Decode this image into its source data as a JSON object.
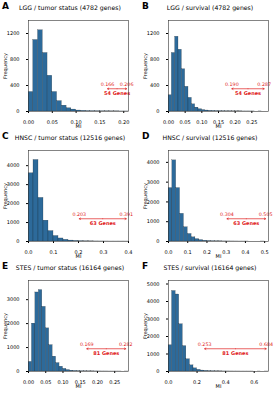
{
  "chart_data": [
    {
      "type": "histogram",
      "panel_label": "A",
      "title": "LGG / tumor status (4782 genes)",
      "x_label": "MI",
      "y_label": "Frequency",
      "color": "#2d6a9a",
      "bins": [
        0,
        0.01,
        0.02,
        0.03,
        0.04,
        0.05,
        0.06,
        0.07,
        0.08,
        0.09,
        0.1,
        0.11,
        0.12,
        0.13,
        0.14,
        0.15,
        0.16,
        0.17,
        0.18,
        0.19,
        0.2,
        0.21
      ],
      "counts": [
        300,
        1100,
        1250,
        900,
        550,
        300,
        160,
        90,
        50,
        30,
        15,
        10,
        6,
        5,
        4,
        3,
        3,
        2,
        2,
        1,
        1
      ],
      "xlim": [
        0,
        0.21
      ],
      "xticks": [
        {
          "value": 0,
          "label": "0.00"
        },
        {
          "value": 0.05,
          "label": "0.05"
        },
        {
          "value": 0.1,
          "label": "0.10"
        },
        {
          "value": 0.15,
          "label": "0.15"
        },
        {
          "value": 0.2,
          "label": "0.20"
        }
      ],
      "ylim": [
        0,
        1400
      ],
      "yticks": [
        0,
        400,
        800,
        1200
      ],
      "annotation": {
        "from": {
          "value": 0.166,
          "label": "0.166"
        },
        "to": {
          "value": 0.206,
          "label": "0.206"
        },
        "text": "54 Genes"
      }
    },
    {
      "type": "histogram",
      "panel_label": "B",
      "title": "LGG / survival (4782 genes)",
      "x_label": "MI",
      "y_label": "Frequency",
      "color": "#2d6a9a",
      "bins": [
        0,
        0.01,
        0.02,
        0.03,
        0.04,
        0.05,
        0.06,
        0.07,
        0.08,
        0.09,
        0.1,
        0.11,
        0.12,
        0.13,
        0.14,
        0.15,
        0.16,
        0.17,
        0.18,
        0.19,
        0.2,
        0.21,
        0.22,
        0.23,
        0.24,
        0.25,
        0.26,
        0.27,
        0.28,
        0.29,
        0.3
      ],
      "counts": [
        250,
        900,
        1150,
        950,
        650,
        380,
        210,
        110,
        60,
        35,
        22,
        15,
        10,
        8,
        6,
        5,
        4,
        3,
        3,
        2,
        2,
        2,
        1,
        1,
        1,
        1,
        0,
        1,
        0,
        0
      ],
      "xlim": [
        0,
        0.3
      ],
      "xticks": [
        {
          "value": 0,
          "label": "0.00"
        },
        {
          "value": 0.05,
          "label": "0.05"
        },
        {
          "value": 0.1,
          "label": "0.10"
        },
        {
          "value": 0.15,
          "label": "0.15"
        },
        {
          "value": 0.2,
          "label": "0.20"
        },
        {
          "value": 0.25,
          "label": "0.25"
        }
      ],
      "ylim": [
        0,
        1400
      ],
      "yticks": [
        0,
        400,
        800,
        1200
      ],
      "annotation": {
        "from": {
          "value": 0.19,
          "label": "0.190"
        },
        "to": {
          "value": 0.287,
          "label": "0.287"
        },
        "text": "54 Genes"
      }
    },
    {
      "type": "histogram",
      "panel_label": "C",
      "title": "HNSC / tumor status (12516 genes)",
      "x_label": "MI",
      "y_label": "Frequency",
      "color": "#2d6a9a",
      "bins": [
        0,
        0.02,
        0.04,
        0.06,
        0.08,
        0.1,
        0.12,
        0.14,
        0.16,
        0.18,
        0.2,
        0.22,
        0.24,
        0.26,
        0.28,
        0.3,
        0.32,
        0.34,
        0.36,
        0.38,
        0.4
      ],
      "counts": [
        3599,
        4300,
        2300,
        1100,
        550,
        290,
        160,
        90,
        50,
        30,
        18,
        10,
        6,
        4,
        3,
        2,
        1,
        1,
        1,
        1
      ],
      "xlim": [
        0,
        0.4
      ],
      "xticks": [
        {
          "value": 0,
          "label": "0.0"
        },
        0.1,
        0.2,
        0.3,
        0.4
      ],
      "ylim": [
        0,
        4800
      ],
      "yticks": [
        0,
        1000,
        2000,
        3000,
        4000
      ],
      "annotation": {
        "from": {
          "value": 0.203,
          "label": "0.203"
        },
        "to": {
          "value": 0.391,
          "label": "0.391"
        },
        "text": "63 Genes"
      }
    },
    {
      "type": "histogram",
      "panel_label": "D",
      "title": "HNSC / survival (12516 genes)",
      "x_label": "MI",
      "y_label": "Frequency",
      "color": "#2d6a9a",
      "bins": [
        0,
        0.02,
        0.04,
        0.06,
        0.08,
        0.1,
        0.12,
        0.14,
        0.16,
        0.18,
        0.2,
        0.22,
        0.24,
        0.26,
        0.28,
        0.3,
        0.32,
        0.34,
        0.36,
        0.38,
        0.4,
        0.42,
        0.44,
        0.46,
        0.48,
        0.5,
        0.52
      ],
      "counts": [
        2700,
        4100,
        2700,
        1400,
        720,
        380,
        210,
        120,
        70,
        40,
        24,
        15,
        10,
        9,
        5,
        4,
        3,
        2,
        1,
        1,
        1,
        0,
        0,
        0,
        1,
        0
      ],
      "xlim": [
        0,
        0.52
      ],
      "xticks": [
        {
          "value": 0,
          "label": "0.0"
        },
        0.1,
        0.2,
        0.3,
        0.4,
        0.5
      ],
      "ylim": [
        0,
        4600
      ],
      "yticks": [
        0,
        1000,
        2000,
        3000,
        4000
      ],
      "annotation": {
        "from": {
          "value": 0.304,
          "label": "0.304"
        },
        "to": {
          "value": 0.505,
          "label": "0.505"
        },
        "text": "63 Genes"
      }
    },
    {
      "type": "histogram",
      "panel_label": "E",
      "title": "STES / tumor status (16164 genes)",
      "x_label": "MI",
      "y_label": "Frequency",
      "color": "#2d6a9a",
      "bins": [
        0,
        0.01,
        0.02,
        0.03,
        0.04,
        0.05,
        0.06,
        0.07,
        0.08,
        0.09,
        0.1,
        0.11,
        0.12,
        0.13,
        0.14,
        0.15,
        0.16,
        0.17,
        0.18,
        0.19,
        0.2,
        0.21,
        0.22,
        0.23,
        0.24,
        0.25,
        0.26,
        0.27,
        0.28,
        0.29
      ],
      "counts": [
        400,
        2000,
        3300,
        3400,
        2700,
        1800,
        1100,
        620,
        350,
        200,
        110,
        60,
        35,
        22,
        15,
        10,
        8,
        6,
        5,
        4,
        3,
        2,
        2,
        1,
        1,
        1,
        1,
        0,
        1
      ],
      "xlim": [
        0,
        0.29
      ],
      "xticks": [
        {
          "value": 0,
          "label": "0.00"
        },
        {
          "value": 0.05,
          "label": "0.05"
        },
        {
          "value": 0.1,
          "label": "0.10"
        },
        {
          "value": 0.15,
          "label": "0.15"
        },
        {
          "value": 0.2,
          "label": "0.20"
        },
        {
          "value": 0.25,
          "label": "0.25"
        }
      ],
      "ylim": [
        0,
        3800
      ],
      "yticks": [
        0,
        1000,
        2000,
        3000
      ],
      "annotation": {
        "from": {
          "value": 0.169,
          "label": "0.169"
        },
        "to": {
          "value": 0.282,
          "label": "0.282"
        },
        "text": "81 Genes"
      }
    },
    {
      "type": "histogram",
      "panel_label": "F",
      "title": "STES / survival (16164 genes)",
      "x_label": "MI",
      "y_label": "Frequency",
      "color": "#2d6a9a",
      "bins": [
        0,
        0.025,
        0.05,
        0.075,
        0.1,
        0.125,
        0.15,
        0.175,
        0.2,
        0.225,
        0.25,
        0.275,
        0.3,
        0.325,
        0.35,
        0.375,
        0.4,
        0.425,
        0.45,
        0.475,
        0.5,
        0.525,
        0.55,
        0.575,
        0.6,
        0.625,
        0.65,
        0.675,
        0.7
      ],
      "counts": [
        1500,
        4600,
        4400,
        2700,
        1450,
        700,
        350,
        180,
        95,
        55,
        35,
        22,
        15,
        10,
        7,
        5,
        4,
        3,
        2,
        2,
        1,
        1,
        1,
        1,
        0,
        1,
        0,
        1
      ],
      "xlim": [
        0,
        0.7
      ],
      "xticks": [
        {
          "value": 0,
          "label": "0.0"
        },
        0.2,
        0.4,
        0.6
      ],
      "ylim": [
        0,
        5200
      ],
      "yticks": [
        0,
        1000,
        2000,
        3000,
        4000,
        5000
      ],
      "annotation": {
        "from": {
          "value": 0.253,
          "label": "0.253"
        },
        "to": {
          "value": 0.684,
          "label": "0.684"
        },
        "text": "81 Genes"
      }
    }
  ]
}
